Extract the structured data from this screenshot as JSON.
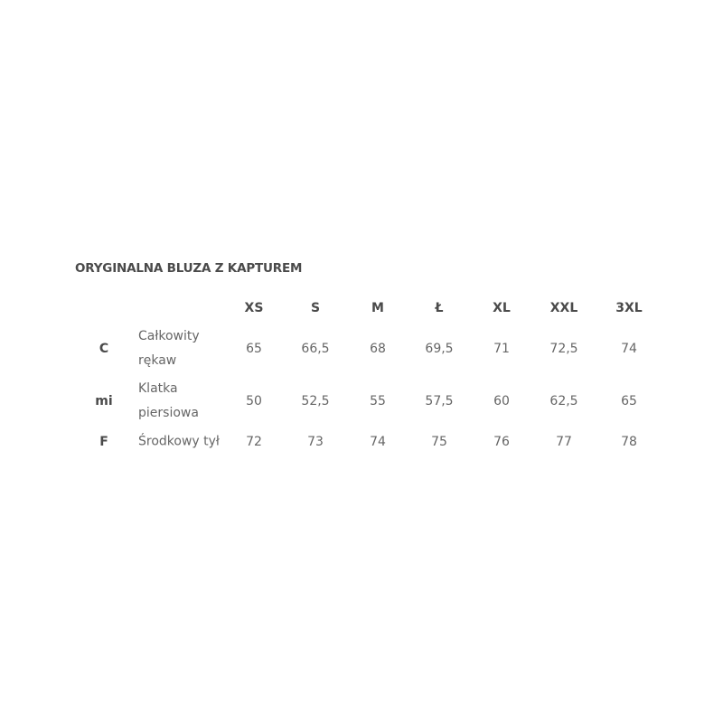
{
  "title": "ORYGINALNA BLUZA Z KAPTUREM",
  "sizes": [
    "XS",
    "S",
    "M",
    "Ł",
    "XL",
    "XXL",
    "3XL"
  ],
  "rows": [
    {
      "code": "C",
      "desc_lines": [
        "Całkowity",
        "rękaw"
      ],
      "values": [
        "65",
        "66,5",
        "68",
        "69,5",
        "71",
        "72,5",
        "74"
      ]
    },
    {
      "code": "mi",
      "desc_lines": [
        "Klatka",
        "piersiowa"
      ],
      "values": [
        "50",
        "52,5",
        "55",
        "57,5",
        "60",
        "62,5",
        "65"
      ]
    },
    {
      "code": "F",
      "desc_lines": [
        "Środkowy tył"
      ],
      "values": [
        "72",
        "73",
        "74",
        "75",
        "76",
        "77",
        "78"
      ]
    }
  ]
}
